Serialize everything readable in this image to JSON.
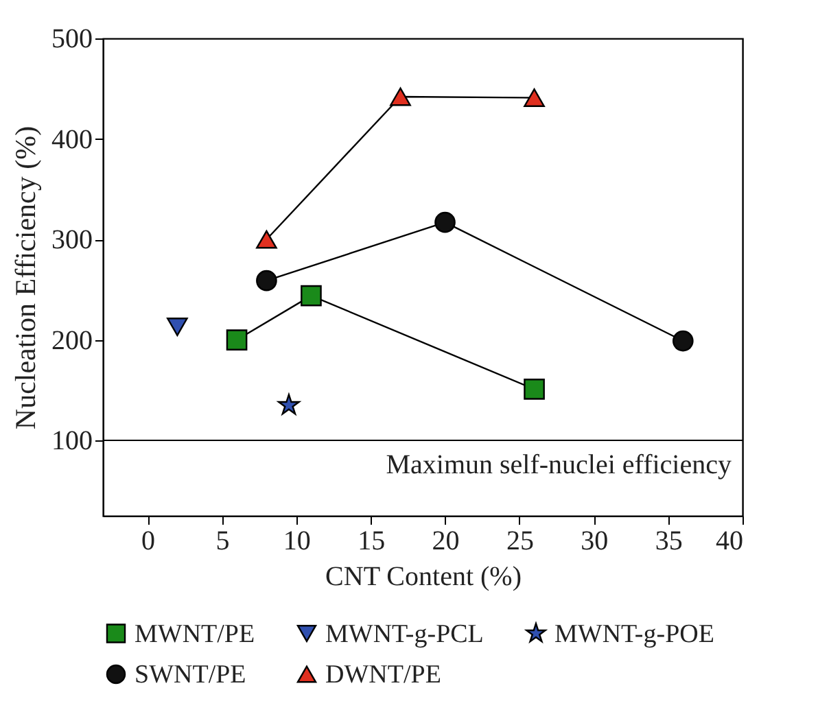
{
  "chart_data": {
    "type": "line",
    "xlabel": "CNT Content (%)",
    "ylabel": "Nucleation Efficiency (%)",
    "xlim": [
      -3,
      40
    ],
    "ylim": [
      25,
      500
    ],
    "xticks": [
      0,
      5,
      10,
      15,
      20,
      25,
      30,
      35,
      40
    ],
    "yticks": [
      100,
      200,
      300,
      400,
      500
    ],
    "grid": false,
    "legend": "bottom",
    "series": [
      {
        "name": "MWNT/PE",
        "marker": "square",
        "color": "#1a8a1a",
        "x": [
          6,
          11,
          26
        ],
        "values": [
          200,
          244,
          151
        ]
      },
      {
        "name": "MWNT-g-PCL",
        "marker": "triangle-down",
        "color": "#3050b0",
        "x": [
          2
        ],
        "values": [
          213
        ]
      },
      {
        "name": "MWNT-g-POE",
        "marker": "star",
        "color": "#3050b0",
        "x": [
          9.5
        ],
        "values": [
          135
        ]
      },
      {
        "name": "SWNT/PE",
        "marker": "circle",
        "color": "#111111",
        "x": [
          8,
          20,
          36
        ],
        "values": [
          259,
          317,
          199
        ]
      },
      {
        "name": "DWNT/PE",
        "marker": "triangle",
        "color": "#e03020",
        "x": [
          8,
          17,
          26
        ],
        "values": [
          300,
          442,
          441
        ]
      }
    ],
    "ref_lines": [
      {
        "axis": "y",
        "value": 100,
        "label": "Maximun self-nuclei efficiency",
        "color": "#000000"
      }
    ]
  }
}
